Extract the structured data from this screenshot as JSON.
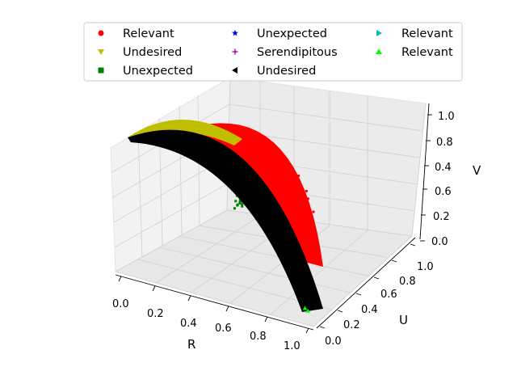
{
  "chart_data": {
    "type": "scatter",
    "projection": "3d",
    "title": "",
    "axes": {
      "x": {
        "label": "R",
        "ticks": [
          "0.0",
          "0.2",
          "0.4",
          "0.6",
          "0.8",
          "1.0"
        ],
        "range": [
          0,
          1
        ]
      },
      "y": {
        "label": "U",
        "ticks": [
          "0.0",
          "0.2",
          "0.4",
          "0.6",
          "0.8",
          "1.0"
        ],
        "range": [
          0,
          1
        ]
      },
      "z": {
        "label": "V",
        "ticks": [
          "0.0",
          "0.2",
          "0.4",
          "0.6",
          "0.8",
          "1.0"
        ],
        "range": [
          0,
          1
        ]
      }
    },
    "grid": true,
    "legend": {
      "placement": "top",
      "columns": 3,
      "entries": [
        {
          "name": "Relevant",
          "marker": "circle",
          "color": "#ff0000"
        },
        {
          "name": "Undesired",
          "marker": "triangle-down",
          "color": "#bfbf00"
        },
        {
          "name": "Unexpected",
          "marker": "square",
          "color": "#008000"
        },
        {
          "name": "Unexpected",
          "marker": "star",
          "color": "#0000ff"
        },
        {
          "name": "Serendipitous",
          "marker": "plus",
          "color": "#bf00bf"
        },
        {
          "name": "Undesired",
          "marker": "triangle-left",
          "color": "#000000"
        },
        {
          "name": "Relevant",
          "marker": "triangle-right",
          "color": "#00bfbf"
        },
        {
          "name": "Relevant",
          "marker": "triangle-up",
          "color": "#00ff00"
        }
      ]
    },
    "series": [
      {
        "name": "Relevant",
        "color": "#ff0000",
        "region": "outer arc band, R 0.1–1.0, U 0.0–0.4, V 0.4–0.95"
      },
      {
        "name": "Undesired",
        "color": "#bfbf00",
        "region": "arc crest near R 0.0–0.4, V 0.85–0.95"
      },
      {
        "name": "Unexpected",
        "color": "#008000",
        "region": "small cluster near R 0.3, U 0.9, V 0.4"
      },
      {
        "name": "Undesired",
        "color": "#000000",
        "region": "main dense arc band from (R 0.0, V 0.85) to (R 1.0, U 0.1, V 0.0)"
      },
      {
        "name": "Relevant",
        "color": "#00ff00",
        "region": "small cluster near R 1.0, U 0.0, V 0.0"
      }
    ]
  }
}
